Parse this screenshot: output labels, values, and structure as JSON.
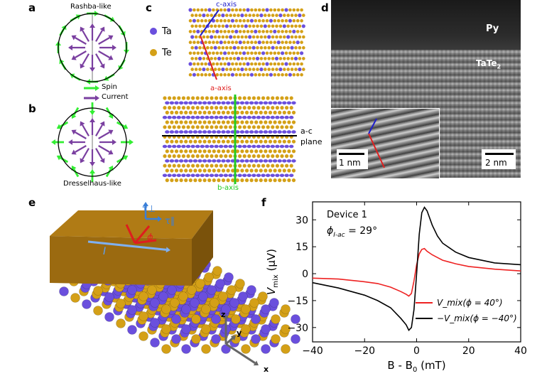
{
  "panel_labels": [
    "a",
    "b",
    "c",
    "d",
    "e",
    "f"
  ],
  "panel_a": {
    "title": "Rashba-like",
    "legend_spin": "Spin",
    "legend_current": "Current"
  },
  "panel_b": {
    "title": "Dresselhaus-like"
  },
  "panel_c": {
    "ta": "Ta",
    "te": "Te",
    "c_axis": "c-axis",
    "a_axis": "a-axis",
    "b_axis": "b-axis",
    "ac_plane_1": "a-c",
    "ac_plane_2": "plane"
  },
  "panel_d": {
    "py": "Py",
    "tate2": "TaTe",
    "tate2_sub": "2",
    "scale1": "1 nm",
    "scale2": "2 nm"
  },
  "panel_e": {
    "tau_perp": "τ⊥",
    "tau_par": "τ∥",
    "current": "I",
    "phi": "ϕ",
    "z": "z",
    "y": "y",
    "x": "x"
  },
  "colors": {
    "spin": "#33ee33",
    "current": "#7a3fa0",
    "ta": "#6a4fdd",
    "te": "#d4a017",
    "c_axis": "#1f1fcc",
    "a_axis": "#e02020",
    "b_axis": "#22cc22",
    "slab": "#9b6a10"
  },
  "chart_data": {
    "type": "line",
    "title": "",
    "annotation_device": "Device 1",
    "annotation_phi": "ϕ",
    "annotation_phi_sub": "I-ac",
    "annotation_phi_value": " = 29°",
    "xlabel": "B - B",
    "xlabel_sub": "0",
    "xlabel_unit": " (mT)",
    "ylabel": "V",
    "ylabel_sub": "mix",
    "ylabel_unit": " (μV)",
    "xlim": [
      -40,
      40
    ],
    "ylim": [
      -38,
      40
    ],
    "xticks": [
      -40,
      -20,
      0,
      20,
      40
    ],
    "yticks": [
      -30,
      -15,
      0,
      15,
      30
    ],
    "legend": [
      "V_mix(ϕ = 40°)",
      "−V_mix(ϕ = −40°)"
    ],
    "legend_position": "bottom-right",
    "series": [
      {
        "name": "V_mix(ϕ = 40°)",
        "color": "#ee2222",
        "x": [
          -40,
          -30,
          -20,
          -15,
          -10,
          -6,
          -4,
          -3,
          -2,
          -1,
          0,
          1,
          2,
          3,
          4,
          6,
          8,
          10,
          15,
          20,
          30,
          40
        ],
        "y": [
          -2.5,
          -3,
          -4.5,
          -5.5,
          -7.5,
          -10,
          -11.5,
          -12.5,
          -11,
          -4,
          5,
          11,
          13.5,
          14,
          12.5,
          10.5,
          9,
          7.5,
          5.5,
          4,
          2.5,
          1.5
        ]
      },
      {
        "name": "−V_mix(ϕ = −40°)",
        "color": "#000000",
        "x": [
          -40,
          -30,
          -20,
          -15,
          -10,
          -6,
          -4,
          -3,
          -2,
          -1,
          0,
          1,
          2,
          3,
          4,
          6,
          8,
          10,
          15,
          20,
          30,
          40
        ],
        "y": [
          -5,
          -8,
          -12,
          -15,
          -19,
          -25,
          -28.5,
          -31.5,
          -30,
          -20,
          0,
          22,
          34,
          37,
          35,
          27,
          21,
          17,
          12,
          9,
          6,
          5
        ]
      }
    ]
  }
}
